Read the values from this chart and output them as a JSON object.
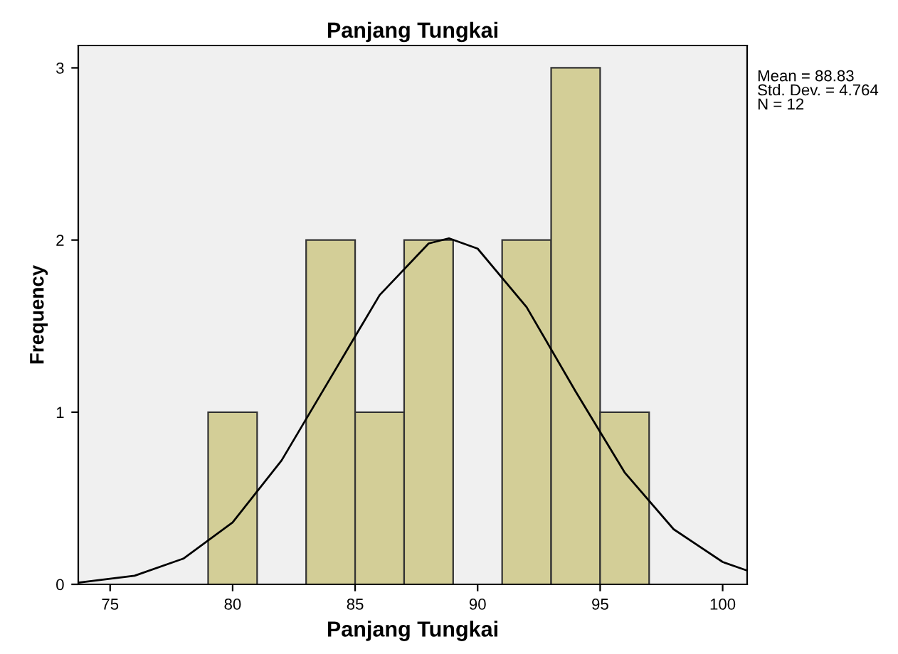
{
  "chart_data": {
    "type": "histogram",
    "title": "Panjang Tungkai",
    "xlabel": "Panjang Tungkai",
    "ylabel": "Frequency",
    "bins": [
      79,
      81,
      83,
      85,
      87,
      89,
      91,
      93,
      95,
      97
    ],
    "series": [
      {
        "type": "histogram",
        "color": "#d3ce97",
        "values": [
          1,
          0,
          2,
          1,
          2,
          0,
          2,
          3,
          1
        ]
      },
      {
        "type": "line",
        "color": "#000000",
        "x": [
          73.7,
          76,
          78,
          80,
          82,
          84,
          86,
          88,
          88.83,
          90,
          92,
          94,
          96,
          98,
          100,
          101
        ],
        "values": [
          0.01,
          0.05,
          0.15,
          0.36,
          0.72,
          1.2,
          1.68,
          1.98,
          2.01,
          1.95,
          1.61,
          1.12,
          0.65,
          0.32,
          0.13,
          0.08
        ]
      }
    ],
    "xlim": [
      73.7,
      101
    ],
    "xticks": [
      75,
      80,
      85,
      90,
      95,
      100
    ],
    "ylim": [
      0,
      3.13
    ],
    "yticks": [
      0,
      1,
      2,
      3
    ],
    "annotations": [
      "Mean = 88.83",
      "Std. Dev. = 4.764",
      "N = 12"
    ],
    "grid": false,
    "legend": false,
    "marker": "none",
    "line_style": "solid"
  }
}
